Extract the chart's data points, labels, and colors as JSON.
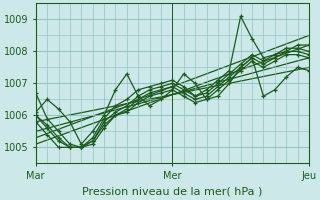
{
  "title": "",
  "xlabel": "Pression niveau de la mer( hPa )",
  "bg_color": "#cce8e8",
  "plot_bg_color": "#cce8e8",
  "grid_color": "#88bbbb",
  "line_color": "#1a5c1a",
  "ylim": [
    1004.5,
    1009.5
  ],
  "xlim": [
    0,
    48
  ],
  "xticks": [
    0,
    24,
    48
  ],
  "xticklabels": [
    "Mar",
    "Mer",
    "Jeu"
  ],
  "yticks": [
    1005,
    1006,
    1007,
    1008,
    1009
  ],
  "series": [
    {
      "x": [
        0,
        2,
        4,
        6,
        8,
        10,
        12,
        14,
        16,
        18,
        20,
        22,
        24,
        26,
        28,
        30,
        32,
        34,
        36,
        38,
        40,
        42,
        44,
        46,
        48
      ],
      "y": [
        1006.7,
        1005.9,
        1005.5,
        1005.1,
        1005.0,
        1005.3,
        1005.9,
        1006.3,
        1006.5,
        1006.8,
        1006.9,
        1007.0,
        1007.1,
        1006.9,
        1006.6,
        1006.8,
        1007.1,
        1007.4,
        1009.1,
        1008.4,
        1007.8,
        1007.9,
        1008.0,
        1008.2,
        1008.2
      ]
    },
    {
      "x": [
        0,
        2,
        4,
        6,
        8,
        10,
        12,
        14,
        16,
        18,
        20,
        22,
        24,
        26,
        28,
        30,
        32,
        34,
        36,
        38,
        40,
        42,
        44,
        46,
        48
      ],
      "y": [
        1006.0,
        1005.6,
        1005.2,
        1005.0,
        1005.0,
        1005.2,
        1005.7,
        1006.0,
        1006.2,
        1006.5,
        1006.7,
        1006.8,
        1006.9,
        1006.7,
        1006.5,
        1006.6,
        1006.9,
        1007.2,
        1007.5,
        1007.8,
        1007.6,
        1007.8,
        1008.0,
        1008.0,
        1007.9
      ]
    },
    {
      "x": [
        0,
        2,
        4,
        6,
        8,
        10,
        12,
        14,
        16,
        18,
        20,
        22,
        24,
        26,
        28,
        30,
        32,
        34,
        36,
        38,
        40,
        42,
        44,
        46,
        48
      ],
      "y": [
        1006.0,
        1005.7,
        1005.3,
        1005.0,
        1005.0,
        1005.2,
        1005.8,
        1006.1,
        1006.3,
        1006.6,
        1006.8,
        1006.9,
        1007.0,
        1006.8,
        1006.6,
        1006.7,
        1007.0,
        1007.3,
        1007.6,
        1007.9,
        1007.7,
        1007.9,
        1008.1,
        1008.1,
        1008.0
      ]
    },
    {
      "x": [
        0,
        2,
        4,
        6,
        8,
        10,
        12,
        14,
        16,
        18,
        20,
        22,
        24,
        26,
        28,
        30,
        32,
        34,
        36,
        38,
        40,
        42,
        44,
        46,
        48
      ],
      "y": [
        1006.1,
        1006.5,
        1006.2,
        1005.8,
        1005.1,
        1005.5,
        1006.0,
        1006.8,
        1007.3,
        1006.6,
        1006.3,
        1006.5,
        1006.8,
        1007.3,
        1007.0,
        1006.5,
        1006.6,
        1007.0,
        1007.5,
        1007.8,
        1006.6,
        1006.8,
        1007.2,
        1007.5,
        1007.4
      ]
    },
    {
      "x": [
        0,
        2,
        4,
        6,
        8,
        10,
        12,
        14,
        16,
        18,
        20,
        22,
        24,
        26,
        28,
        30,
        32,
        34,
        36,
        38,
        40,
        42,
        44,
        46,
        48
      ],
      "y": [
        1005.8,
        1005.4,
        1005.0,
        1005.0,
        1005.0,
        1005.1,
        1005.6,
        1006.0,
        1006.1,
        1006.4,
        1006.6,
        1006.7,
        1006.8,
        1006.6,
        1006.4,
        1006.5,
        1006.8,
        1007.1,
        1007.4,
        1007.7,
        1007.5,
        1007.7,
        1007.9,
        1007.9,
        1007.8
      ]
    }
  ],
  "trend_lines": [
    {
      "x0": 0,
      "y0": 1005.3,
      "x1": 48,
      "y1": 1008.5
    },
    {
      "x0": 0,
      "y0": 1005.1,
      "x1": 48,
      "y1": 1008.2
    },
    {
      "x0": 0,
      "y0": 1005.5,
      "x1": 48,
      "y1": 1007.8
    },
    {
      "x0": 0,
      "y0": 1005.8,
      "x1": 48,
      "y1": 1007.5
    }
  ],
  "vline_positions": [
    0,
    24,
    48
  ],
  "tick_fontsize": 7,
  "label_fontsize": 8,
  "marker": "+",
  "markersize": 3.5,
  "linewidth": 0.9,
  "markeredgewidth": 0.9
}
